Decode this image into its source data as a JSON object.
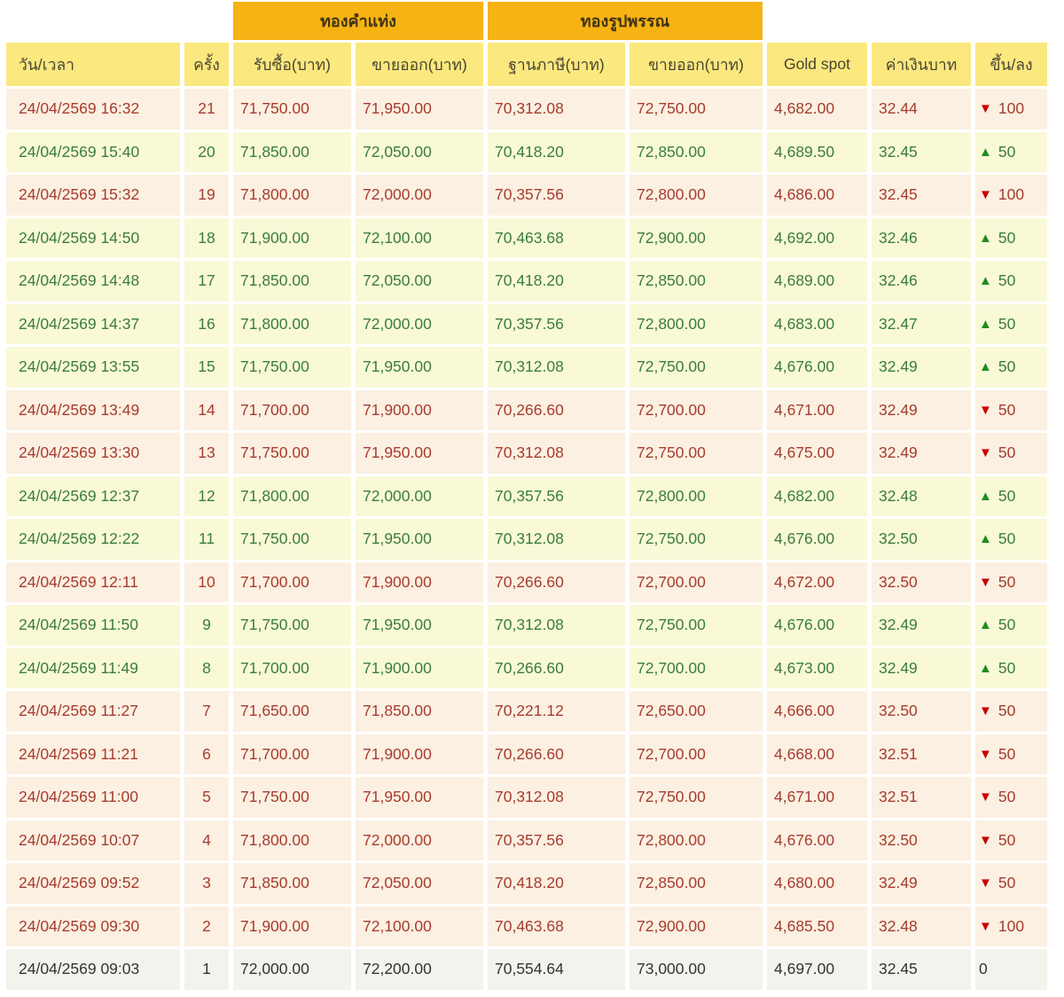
{
  "table": {
    "group_headers": [
      "ทองคำแท่ง",
      "ทองรูปพรรณ"
    ],
    "columns": [
      "วัน/เวลา",
      "ครั้ง",
      "รับซื้อ(บาท)",
      "ขายออก(บาท)",
      "ฐานภาษี(บาท)",
      "ขายออก(บาท)",
      "Gold spot",
      "ค่าเงินบาท",
      "ขึ้น/ลง"
    ],
    "rows": [
      {
        "datetime": "24/04/2569 16:32",
        "round": "21",
        "bar_buy": "71,750.00",
        "bar_sell": "71,950.00",
        "tax_base": "70,312.08",
        "ornament_sell": "72,750.00",
        "gold_spot": "4,682.00",
        "baht_rate": "32.44",
        "change": "100",
        "trend": "down"
      },
      {
        "datetime": "24/04/2569 15:40",
        "round": "20",
        "bar_buy": "71,850.00",
        "bar_sell": "72,050.00",
        "tax_base": "70,418.20",
        "ornament_sell": "72,850.00",
        "gold_spot": "4,689.50",
        "baht_rate": "32.45",
        "change": "50",
        "trend": "up"
      },
      {
        "datetime": "24/04/2569 15:32",
        "round": "19",
        "bar_buy": "71,800.00",
        "bar_sell": "72,000.00",
        "tax_base": "70,357.56",
        "ornament_sell": "72,800.00",
        "gold_spot": "4,686.00",
        "baht_rate": "32.45",
        "change": "100",
        "trend": "down"
      },
      {
        "datetime": "24/04/2569 14:50",
        "round": "18",
        "bar_buy": "71,900.00",
        "bar_sell": "72,100.00",
        "tax_base": "70,463.68",
        "ornament_sell": "72,900.00",
        "gold_spot": "4,692.00",
        "baht_rate": "32.46",
        "change": "50",
        "trend": "up"
      },
      {
        "datetime": "24/04/2569 14:48",
        "round": "17",
        "bar_buy": "71,850.00",
        "bar_sell": "72,050.00",
        "tax_base": "70,418.20",
        "ornament_sell": "72,850.00",
        "gold_spot": "4,689.00",
        "baht_rate": "32.46",
        "change": "50",
        "trend": "up"
      },
      {
        "datetime": "24/04/2569 14:37",
        "round": "16",
        "bar_buy": "71,800.00",
        "bar_sell": "72,000.00",
        "tax_base": "70,357.56",
        "ornament_sell": "72,800.00",
        "gold_spot": "4,683.00",
        "baht_rate": "32.47",
        "change": "50",
        "trend": "up"
      },
      {
        "datetime": "24/04/2569 13:55",
        "round": "15",
        "bar_buy": "71,750.00",
        "bar_sell": "71,950.00",
        "tax_base": "70,312.08",
        "ornament_sell": "72,750.00",
        "gold_spot": "4,676.00",
        "baht_rate": "32.49",
        "change": "50",
        "trend": "up"
      },
      {
        "datetime": "24/04/2569 13:49",
        "round": "14",
        "bar_buy": "71,700.00",
        "bar_sell": "71,900.00",
        "tax_base": "70,266.60",
        "ornament_sell": "72,700.00",
        "gold_spot": "4,671.00",
        "baht_rate": "32.49",
        "change": "50",
        "trend": "down"
      },
      {
        "datetime": "24/04/2569 13:30",
        "round": "13",
        "bar_buy": "71,750.00",
        "bar_sell": "71,950.00",
        "tax_base": "70,312.08",
        "ornament_sell": "72,750.00",
        "gold_spot": "4,675.00",
        "baht_rate": "32.49",
        "change": "50",
        "trend": "down"
      },
      {
        "datetime": "24/04/2569 12:37",
        "round": "12",
        "bar_buy": "71,800.00",
        "bar_sell": "72,000.00",
        "tax_base": "70,357.56",
        "ornament_sell": "72,800.00",
        "gold_spot": "4,682.00",
        "baht_rate": "32.48",
        "change": "50",
        "trend": "up"
      },
      {
        "datetime": "24/04/2569 12:22",
        "round": "11",
        "bar_buy": "71,750.00",
        "bar_sell": "71,950.00",
        "tax_base": "70,312.08",
        "ornament_sell": "72,750.00",
        "gold_spot": "4,676.00",
        "baht_rate": "32.50",
        "change": "50",
        "trend": "up"
      },
      {
        "datetime": "24/04/2569 12:11",
        "round": "10",
        "bar_buy": "71,700.00",
        "bar_sell": "71,900.00",
        "tax_base": "70,266.60",
        "ornament_sell": "72,700.00",
        "gold_spot": "4,672.00",
        "baht_rate": "32.50",
        "change": "50",
        "trend": "down"
      },
      {
        "datetime": "24/04/2569 11:50",
        "round": "9",
        "bar_buy": "71,750.00",
        "bar_sell": "71,950.00",
        "tax_base": "70,312.08",
        "ornament_sell": "72,750.00",
        "gold_spot": "4,676.00",
        "baht_rate": "32.49",
        "change": "50",
        "trend": "up"
      },
      {
        "datetime": "24/04/2569 11:49",
        "round": "8",
        "bar_buy": "71,700.00",
        "bar_sell": "71,900.00",
        "tax_base": "70,266.60",
        "ornament_sell": "72,700.00",
        "gold_spot": "4,673.00",
        "baht_rate": "32.49",
        "change": "50",
        "trend": "up"
      },
      {
        "datetime": "24/04/2569 11:27",
        "round": "7",
        "bar_buy": "71,650.00",
        "bar_sell": "71,850.00",
        "tax_base": "70,221.12",
        "ornament_sell": "72,650.00",
        "gold_spot": "4,666.00",
        "baht_rate": "32.50",
        "change": "50",
        "trend": "down"
      },
      {
        "datetime": "24/04/2569 11:21",
        "round": "6",
        "bar_buy": "71,700.00",
        "bar_sell": "71,900.00",
        "tax_base": "70,266.60",
        "ornament_sell": "72,700.00",
        "gold_spot": "4,668.00",
        "baht_rate": "32.51",
        "change": "50",
        "trend": "down"
      },
      {
        "datetime": "24/04/2569 11:00",
        "round": "5",
        "bar_buy": "71,750.00",
        "bar_sell": "71,950.00",
        "tax_base": "70,312.08",
        "ornament_sell": "72,750.00",
        "gold_spot": "4,671.00",
        "baht_rate": "32.51",
        "change": "50",
        "trend": "down"
      },
      {
        "datetime": "24/04/2569 10:07",
        "round": "4",
        "bar_buy": "71,800.00",
        "bar_sell": "72,000.00",
        "tax_base": "70,357.56",
        "ornament_sell": "72,800.00",
        "gold_spot": "4,676.00",
        "baht_rate": "32.50",
        "change": "50",
        "trend": "down"
      },
      {
        "datetime": "24/04/2569 09:52",
        "round": "3",
        "bar_buy": "71,850.00",
        "bar_sell": "72,050.00",
        "tax_base": "70,418.20",
        "ornament_sell": "72,850.00",
        "gold_spot": "4,680.00",
        "baht_rate": "32.49",
        "change": "50",
        "trend": "down"
      },
      {
        "datetime": "24/04/2569 09:30",
        "round": "2",
        "bar_buy": "71,900.00",
        "bar_sell": "72,100.00",
        "tax_base": "70,463.68",
        "ornament_sell": "72,900.00",
        "gold_spot": "4,685.50",
        "baht_rate": "32.48",
        "change": "100",
        "trend": "down"
      },
      {
        "datetime": "24/04/2569 09:03",
        "round": "1",
        "bar_buy": "72,000.00",
        "bar_sell": "72,200.00",
        "tax_base": "70,554.64",
        "ornament_sell": "73,000.00",
        "gold_spot": "4,697.00",
        "baht_rate": "32.45",
        "change": "0",
        "trend": "flat"
      }
    ]
  },
  "colors": {
    "band_bg": "#F7B213",
    "band_text": "#3E3415",
    "header_bg": "#FBE87E",
    "header_text": "#4A4532",
    "down_bg": "#FCF0E2",
    "down_text": "#A63C2E",
    "up_bg": "#F9F9D8",
    "up_text": "#3B7D3B",
    "flat_bg": "#F3F3EE",
    "flat_text": "#333333",
    "down_arrow": "#C80000",
    "up_arrow": "#1E8C1E"
  },
  "icons": {
    "down_arrow": "▼",
    "up_arrow": "▲"
  }
}
